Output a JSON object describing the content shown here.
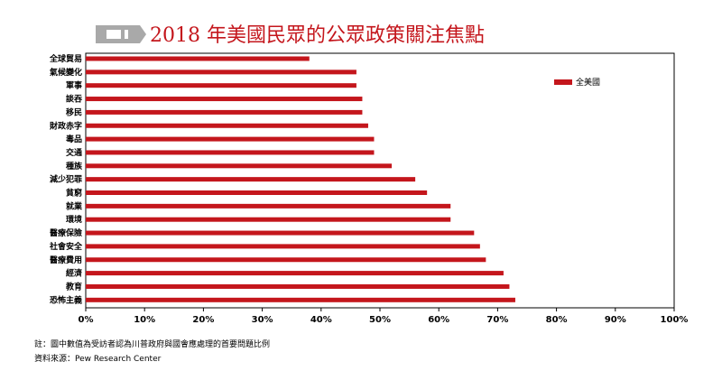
{
  "header": {
    "title": "2018 年美國民眾的公眾政策關注焦點",
    "badge_icon": "tag-icon"
  },
  "chart_data": {
    "type": "bar",
    "orientation": "horizontal",
    "categories": [
      "全球貿易",
      "氣候變化",
      "軍事",
      "談吞",
      "移民",
      "財政赤字",
      "毒品",
      "交通",
      "種族",
      "減少犯罪",
      "貧窮",
      "就業",
      "環境",
      "醫療保險",
      "社會安全",
      "醫療費用",
      "經濟",
      "教育",
      "恐怖主義"
    ],
    "series": [
      {
        "name": "全美國",
        "values": [
          38,
          46,
          46,
          47,
          47,
          48,
          49,
          49,
          52,
          56,
          58,
          62,
          62,
          66,
          67,
          68,
          71,
          72,
          73
        ]
      }
    ],
    "x_ticks": [
      "0%",
      "10%",
      "20%",
      "30%",
      "40%",
      "50%",
      "60%",
      "70%",
      "80%",
      "90%",
      "100%"
    ],
    "xlim": [
      0,
      100
    ],
    "legend_position": "top-right",
    "grid": false,
    "bar_color": "#c4161c"
  },
  "footer": {
    "note": "註：圖中數值為受訪者認為川普政府與國會應處理的首要問題比例",
    "source": "資料來源：Pew Research Center"
  }
}
